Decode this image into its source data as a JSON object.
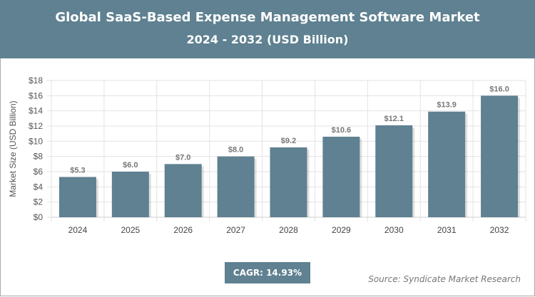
{
  "chart_data": {
    "type": "bar",
    "title": "Global SaaS-Based Expense Management Software Market",
    "subtitle": "2024 - 2032 (USD Billion)",
    "ylabel": "Market Size (USD Billion)",
    "xlabel": "",
    "categories": [
      "2024",
      "2025",
      "2026",
      "2027",
      "2028",
      "2029",
      "2030",
      "2031",
      "2032"
    ],
    "values": [
      5.3,
      6.0,
      7.0,
      8.0,
      9.2,
      10.6,
      12.1,
      13.9,
      16.0
    ],
    "data_labels": [
      "$5.3",
      "$6.0",
      "$7.0",
      "$8.0",
      "$9.2",
      "$10.6",
      "$12.1",
      "$13.9",
      "$16.0"
    ],
    "ylim": [
      0,
      18
    ],
    "yticks": [
      "$0",
      "$2",
      "$4",
      "$6",
      "$8",
      "$10",
      "$12",
      "$14",
      "$16",
      "$18"
    ],
    "grid": true,
    "bar_color": "#5f8191"
  },
  "cagr": "CAGR: 14.93%",
  "source": "Source: Syndicate Market Research"
}
